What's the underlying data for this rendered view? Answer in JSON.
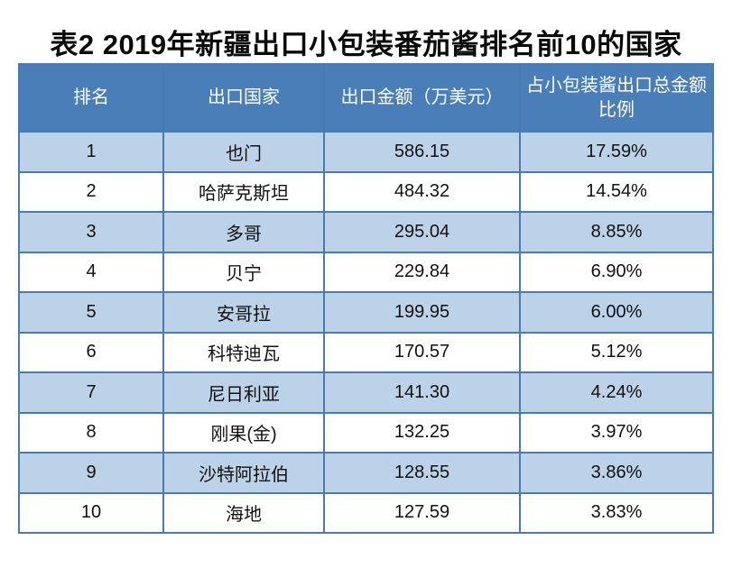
{
  "title": "表2 2019年新疆出口小包装番茄酱排名前10的国家",
  "colors": {
    "header_bg": "#4a7eb8",
    "header_text": "#ffffff",
    "row_bg": "#ffffff",
    "row_alt_bg": "#bcd2e8",
    "border": "#4a7ab0",
    "title_text": "#0a0a0a"
  },
  "table": {
    "headers": {
      "rank": "排名",
      "country": "出口国家",
      "amount": "出口金额（万美元）",
      "share": "占小包装酱出口总金额\n比例"
    },
    "rows": [
      {
        "rank": "1",
        "country": "也门",
        "amount": "586.15",
        "share": "17.59%"
      },
      {
        "rank": "2",
        "country": "哈萨克斯坦",
        "amount": "484.32",
        "share": "14.54%"
      },
      {
        "rank": "3",
        "country": "多哥",
        "amount": "295.04",
        "share": "8.85%"
      },
      {
        "rank": "4",
        "country": "贝宁",
        "amount": "229.84",
        "share": "6.90%"
      },
      {
        "rank": "5",
        "country": "安哥拉",
        "amount": "199.95",
        "share": "6.00%"
      },
      {
        "rank": "6",
        "country": "科特迪瓦",
        "amount": "170.57",
        "share": "5.12%"
      },
      {
        "rank": "7",
        "country": "尼日利亚",
        "amount": "141.30",
        "share": "4.24%"
      },
      {
        "rank": "8",
        "country": "刚果(金)",
        "amount": "132.25",
        "share": "3.97%"
      },
      {
        "rank": "9",
        "country": "沙特阿拉伯",
        "amount": "128.55",
        "share": "3.86%"
      },
      {
        "rank": "10",
        "country": "海地",
        "amount": "127.59",
        "share": "3.83%"
      }
    ]
  },
  "chart_data": {
    "type": "table",
    "title": "表2 2019年新疆出口小包装番茄酱排名前10的国家",
    "columns": [
      "排名",
      "出口国家",
      "出口金额（万美元）",
      "占小包装酱出口总金额比例"
    ],
    "rows": [
      [
        1,
        "也门",
        586.15,
        "17.59%"
      ],
      [
        2,
        "哈萨克斯坦",
        484.32,
        "14.54%"
      ],
      [
        3,
        "多哥",
        295.04,
        "8.85%"
      ],
      [
        4,
        "贝宁",
        229.84,
        "6.90%"
      ],
      [
        5,
        "安哥拉",
        199.95,
        "6.00%"
      ],
      [
        6,
        "科特迪瓦",
        170.57,
        "5.12%"
      ],
      [
        7,
        "尼日利亚",
        141.3,
        "4.24%"
      ],
      [
        8,
        "刚果(金)",
        132.25,
        "3.97%"
      ],
      [
        9,
        "沙特阿拉伯",
        128.55,
        "3.86%"
      ],
      [
        10,
        "海地",
        127.59,
        "3.83%"
      ]
    ],
    "layout_hints": {
      "header_background": "#4a7eb8",
      "zebra_striping": "odd rows light blue #bcd2e8, even rows white",
      "grid": true
    }
  }
}
